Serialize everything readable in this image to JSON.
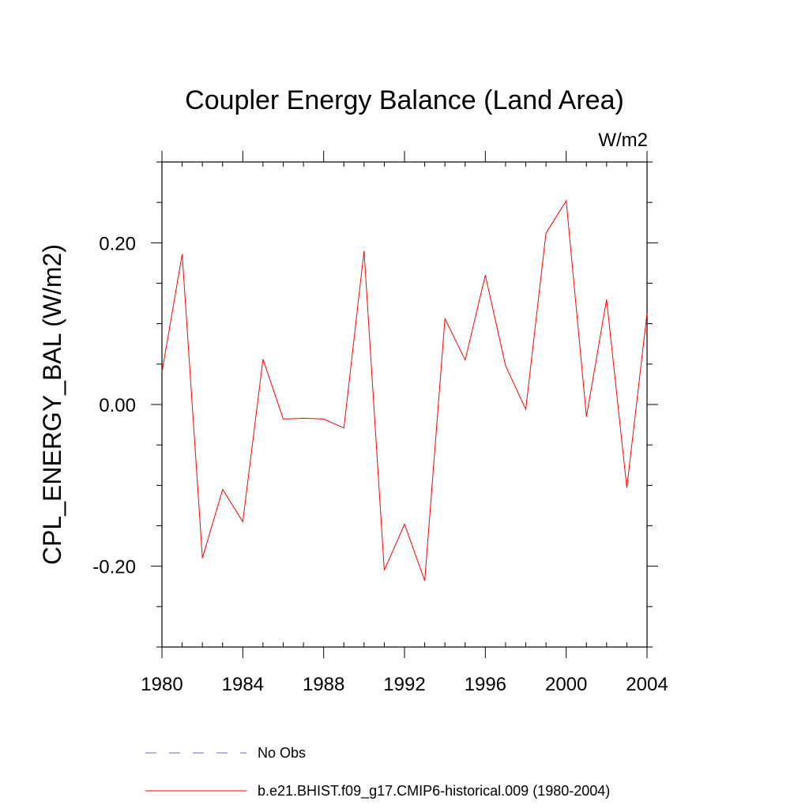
{
  "chart_data": {
    "type": "line",
    "title": "Coupler Energy Balance (Land Area)",
    "units_label": "W/m2",
    "ylabel": "CPL_ENERGY_BAL  (W/m2)",
    "xlabel": "",
    "xlim": [
      1980,
      2004
    ],
    "ylim": [
      -0.3,
      0.3
    ],
    "xticks": [
      1980,
      1984,
      1988,
      1992,
      1996,
      2000,
      2004
    ],
    "xtick_labels": [
      "1980",
      "1984",
      "1988",
      "1992",
      "1996",
      "2000",
      "2004"
    ],
    "yticks": [
      0.2,
      0.0,
      -0.2
    ],
    "ytick_labels": [
      "0.20",
      "0.00",
      "-0.20"
    ],
    "x": [
      1980,
      1981,
      1982,
      1983,
      1984,
      1985,
      1986,
      1987,
      1988,
      1989,
      1990,
      1991,
      1992,
      1993,
      1994,
      1995,
      1996,
      1997,
      1998,
      1999,
      2000,
      2001,
      2002,
      2003,
      2004
    ],
    "series": [
      {
        "name": "b.e21.BHIST.f09_g17.CMIP6-historical.009 (1980-2004)",
        "color": "#ff0000",
        "values": [
          0.04,
          0.186,
          -0.19,
          -0.105,
          -0.145,
          0.056,
          -0.018,
          -0.017,
          -0.018,
          -0.029,
          0.19,
          -0.205,
          -0.148,
          -0.218,
          0.106,
          0.055,
          0.16,
          0.048,
          -0.006,
          0.212,
          0.252,
          -0.015,
          0.13,
          -0.103,
          0.113
        ]
      }
    ],
    "legend": {
      "placement": "bottom",
      "entries": [
        {
          "label": "No Obs",
          "color": "#6a6ad0",
          "style": "dashed"
        },
        {
          "label": "b.e21.BHIST.f09_g17.CMIP6-historical.009 (1980-2004)",
          "color": "#ff0000",
          "style": "solid"
        }
      ]
    }
  }
}
